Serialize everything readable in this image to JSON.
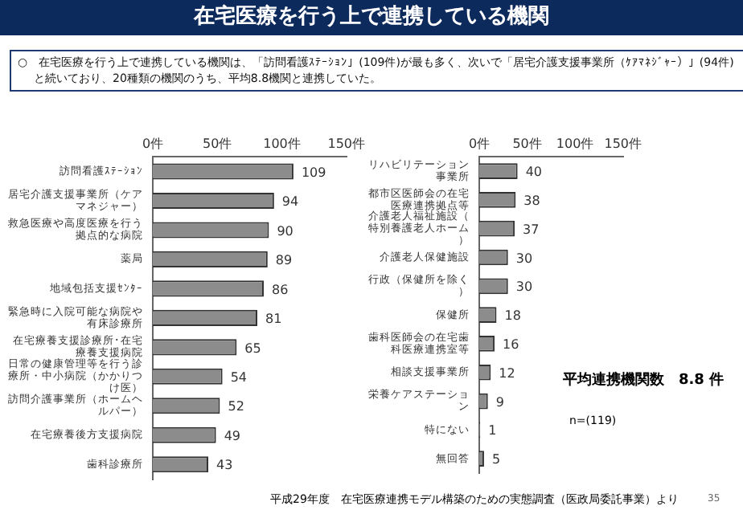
{
  "chart_data": [
    {
      "type": "bar",
      "orientation": "horizontal",
      "title": "在宅医療を行う上で連携している機関",
      "subtitle": "○　在宅医療を行う上で連携している機関は、「訪問看護ｽﾃｰｼｮﾝ」(109件)が最も多く、次いで「居宅介護支援事業所（ｹｱﾏﾈｼﾞｬｰ）」(94件)と続いており、20種類の機関のうち、平均8.8機関と連携していた。",
      "categories": [
        "訪問看護ｽﾃｰｼｮﾝ",
        "居宅介護支援事業所（ケアマネジャー）",
        "救急医療や高度医療を行う拠点的な病院",
        "薬局",
        "地域包括支援ｾﾝﾀｰ",
        "緊急時に入院可能な病院や有床診療所",
        "在宅療養支援診療所･在宅療養支援病院",
        "日常の健康管理等を行う診療所・中小病院（かかりつけ医）",
        "訪問介護事業所（ホームヘルパー）",
        "在宅療養後方支援病院",
        "歯科診療所"
      ],
      "values": [
        109,
        94,
        90,
        89,
        86,
        81,
        65,
        54,
        52,
        49,
        43
      ],
      "color": "#8c8c8c",
      "data_labels": true,
      "grid": false,
      "xlim": [
        0,
        150
      ],
      "xticks": [
        {
          "value": 0,
          "label": "0件"
        },
        {
          "value": 50,
          "label": "50件"
        },
        {
          "value": 100,
          "label": "100件"
        },
        {
          "value": 150,
          "label": "150件"
        }
      ]
    },
    {
      "type": "bar",
      "orientation": "horizontal",
      "categories": [
        "リハビリテーション事業所",
        "都市区医師会の在宅医療連携拠点等",
        "介護老人福祉施設（特別養護老人ホーム）",
        "介護老人保健施設",
        "行政（保健所を除く）",
        "保健所",
        "歯科医師会の在宅歯科医療連携室等",
        "相談支援事業所",
        "栄養ケアステーション",
        "特にない",
        "無回答"
      ],
      "values": [
        40,
        38,
        37,
        30,
        30,
        18,
        16,
        12,
        9,
        1,
        5
      ],
      "color": "#8c8c8c",
      "data_labels": true,
      "grid": false,
      "xlim": [
        0,
        150
      ],
      "xticks": [
        {
          "value": 0,
          "label": "0件"
        },
        {
          "value": 50,
          "label": "50件"
        },
        {
          "value": 100,
          "label": "100件"
        },
        {
          "value": 150,
          "label": "150件"
        }
      ],
      "annotations": [
        "平均連携機関数　8.8 件",
        "n=(119)",
        "平成29年度　在宅医療連携モデル構築のための実態調査（医政局委託事業）より",
        "35"
      ]
    }
  ]
}
